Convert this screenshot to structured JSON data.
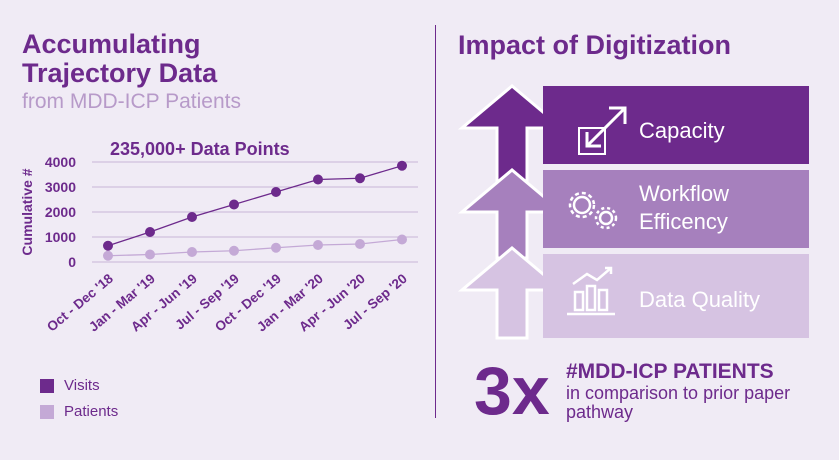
{
  "left_panel": {
    "title_line1": "Accumulating",
    "title_line2": "Trajectory Data",
    "subtitle": "from MDD-ICP Patients",
    "chart_label": "235,000+ Data Points"
  },
  "chart_data": {
    "type": "line",
    "title": "235,000+ Data Points",
    "ylabel": "Cumulative #",
    "xlabel": "",
    "categories": [
      "Oct - Dec '18",
      "Jan - Mar '19",
      "Apr - Jun '19",
      "Jul - Sep '19",
      "Oct - Dec '19",
      "Jan - Mar '20",
      "Apr - Jun '20",
      "Jul - Sep '20"
    ],
    "y_ticks": [
      "4000",
      "3000",
      "2000",
      "1000",
      "0"
    ],
    "ylim": [
      0,
      4000
    ],
    "grid": true,
    "legend_position": "bottom-left",
    "series": [
      {
        "name": "Visits",
        "color": "#6d2a8c",
        "values": [
          650,
          1200,
          1800,
          2300,
          2800,
          3300,
          3350,
          3850
        ]
      },
      {
        "name": "Patients",
        "color": "#c4a9d6",
        "values": [
          250,
          300,
          400,
          450,
          570,
          680,
          720,
          900
        ]
      }
    ]
  },
  "right_panel": {
    "title": "Impact of Digitization",
    "bars": [
      {
        "label_line1": "Capacity",
        "label_line2": "",
        "icon": "expand-arrows-icon",
        "color": "#6d2a8c"
      },
      {
        "label_line1": "Workflow",
        "label_line2": "Efficency",
        "icon": "gears-icon",
        "color": "#a680bd"
      },
      {
        "label_line1": "Data Quality",
        "label_line2": "",
        "icon": "growth-chart-icon",
        "color": "#d6c3e2"
      }
    ],
    "stat_value": "3x",
    "stat_heading": "#MDD-ICP PATIENTS",
    "stat_text": "in comparison to prior paper pathway"
  }
}
